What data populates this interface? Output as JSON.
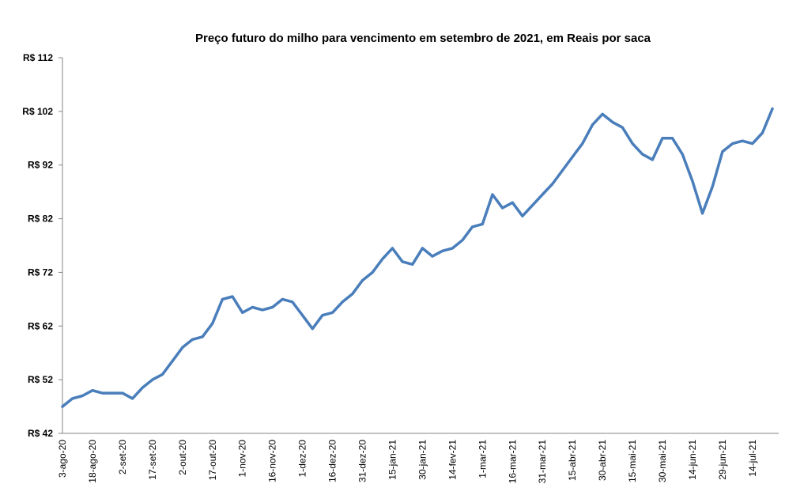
{
  "chart_data": {
    "type": "line",
    "title": "Preço futuro do milho para vencimento em setembro de 2021, em Reais por saca",
    "categories": [
      "3-ago-20",
      null,
      null,
      "18-ago-20",
      null,
      null,
      "2-set-20",
      null,
      null,
      "17-set-20",
      null,
      null,
      "2-out-20",
      null,
      null,
      "17-out-20",
      null,
      null,
      "1-nov-20",
      null,
      null,
      "16-nov-20",
      null,
      null,
      "1-dez-20",
      null,
      null,
      "16-dez-20",
      null,
      null,
      "31-dez-20",
      null,
      null,
      "15-jan-21",
      null,
      null,
      "30-jan-21",
      null,
      null,
      "14-fev-21",
      null,
      null,
      "1-mar-21",
      null,
      null,
      "16-mar-21",
      null,
      null,
      "31-mar-21",
      null,
      null,
      "15-abr-21",
      null,
      null,
      "30-abr-21",
      null,
      null,
      "15-mai-21",
      null,
      null,
      "30-mai-21",
      null,
      null,
      "14-jun-21",
      null,
      null,
      "29-jun-21",
      null,
      null,
      "14-jul-21",
      null,
      null
    ],
    "values": [
      47,
      48.5,
      49,
      50,
      49.5,
      49.5,
      49.5,
      48.5,
      50.5,
      52,
      53,
      55.5,
      58,
      59.5,
      60,
      62.5,
      67,
      67.5,
      64.5,
      65.5,
      65,
      65.5,
      67,
      66.5,
      64,
      61.5,
      64,
      64.5,
      66.5,
      68,
      70.5,
      72,
      74.5,
      76.5,
      74,
      73.5,
      76.5,
      75,
      76,
      76.5,
      78,
      80.5,
      81,
      86.5,
      84,
      85,
      82.5,
      84.5,
      86.5,
      88.5,
      91,
      93.5,
      96,
      99.5,
      101.5,
      100,
      99,
      96,
      94,
      93,
      97,
      97,
      94,
      89,
      83,
      88,
      94.5,
      96,
      96.5,
      96,
      98,
      102.5
    ],
    "color": "#4a7ebb",
    "ylim": [
      42,
      112
    ],
    "yticks": [
      {
        "value": 42,
        "label": "R$ 42"
      },
      {
        "value": 52,
        "label": "R$ 52"
      },
      {
        "value": 62,
        "label": "R$ 62"
      },
      {
        "value": 72,
        "label": "R$ 72"
      },
      {
        "value": 82,
        "label": "R$ 82"
      },
      {
        "value": 92,
        "label": "R$ 92"
      },
      {
        "value": 102,
        "label": "R$ 102"
      },
      {
        "value": 112,
        "label": "R$ 112"
      }
    ],
    "grid": false
  }
}
